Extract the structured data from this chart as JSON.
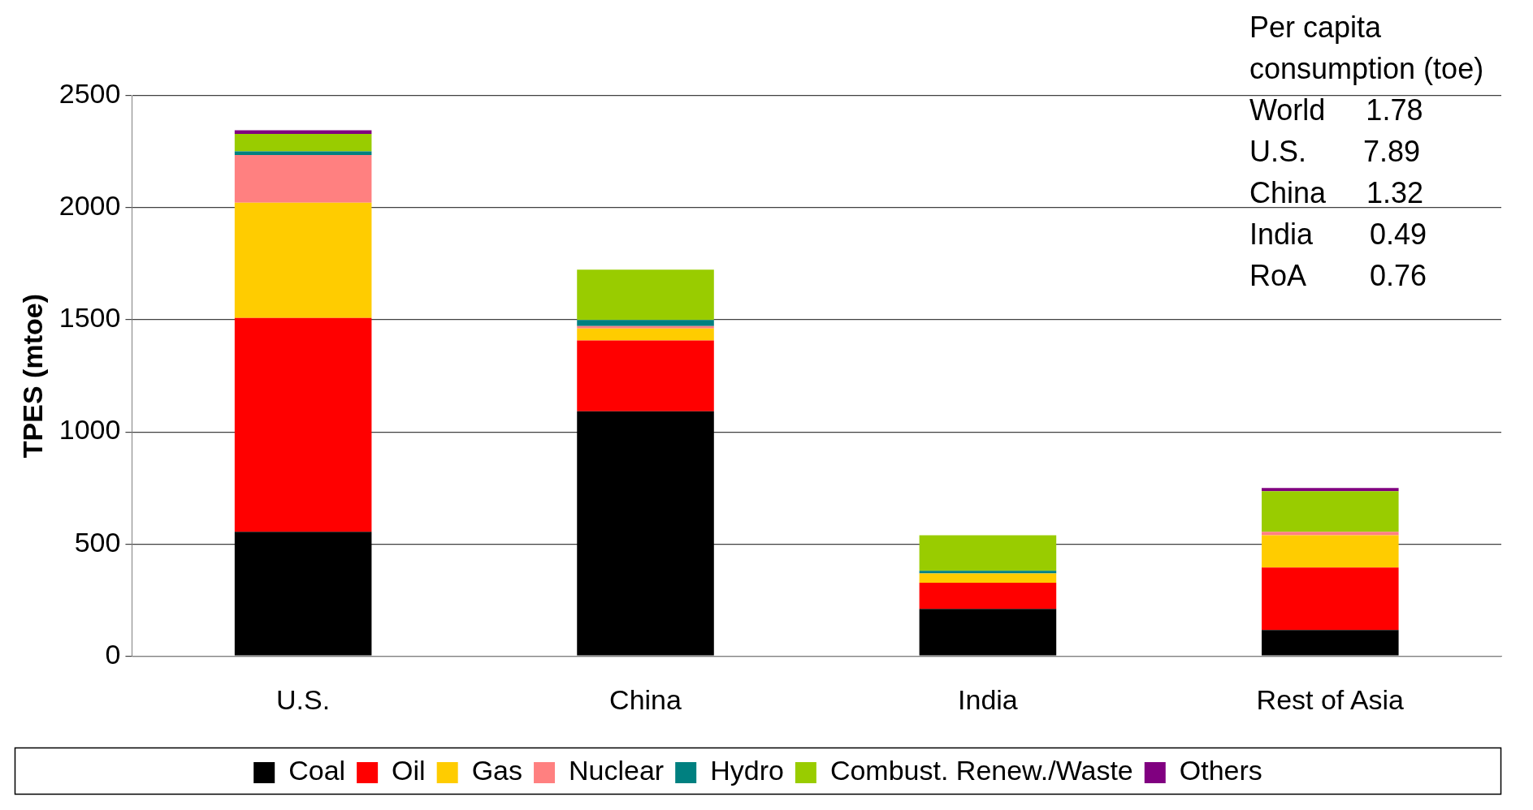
{
  "chart_data": {
    "type": "bar",
    "stacked": true,
    "ylabel": "TPES (mtoe)",
    "categories": [
      "U.S.",
      "China",
      "India",
      "Rest of Asia"
    ],
    "series": [
      {
        "name": "Coal",
        "color": "#000000",
        "values": [
          554,
          1092,
          210,
          116
        ]
      },
      {
        "name": "Oil",
        "color": "#ff0000",
        "values": [
          954,
          316,
          117,
          279
        ]
      },
      {
        "name": "Gas",
        "color": "#ffcc00",
        "values": [
          515,
          53,
          41,
          144
        ]
      },
      {
        "name": "Nuclear",
        "color": "#ff8080",
        "values": [
          213,
          11,
          0,
          15
        ]
      },
      {
        "name": "Hydro",
        "color": "#008080",
        "values": [
          16,
          27,
          12,
          0
        ]
      },
      {
        "name": "Combust. Renew./Waste",
        "color": "#99cc00",
        "values": [
          78,
          225,
          159,
          181
        ]
      },
      {
        "name": "Others",
        "color": "#800080",
        "values": [
          16,
          0,
          0,
          15
        ]
      }
    ],
    "ylim": [
      0,
      2500
    ],
    "yticks": [
      0,
      500,
      1000,
      1500,
      2000,
      2500
    ],
    "grid": "y",
    "legend": "bottom",
    "annotations": [
      "Per capita consumption (toe)",
      "World     1.78",
      "U.S.       7.89",
      "China     1.32",
      "India       0.49",
      "RoA        0.76"
    ]
  }
}
